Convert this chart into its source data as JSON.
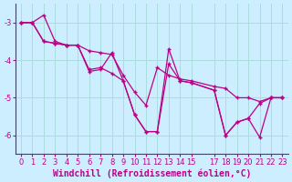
{
  "xlabel": "Windchill (Refroidissement éolien,°C)",
  "background_color": "#cceeff",
  "grid_color": "#aadddd",
  "line_color": "#bb0088",
  "marker": "+",
  "x": [
    0,
    1,
    2,
    3,
    4,
    5,
    6,
    7,
    8,
    9,
    10,
    11,
    12,
    13,
    14,
    15,
    17,
    18,
    19,
    20,
    21,
    22,
    23
  ],
  "series1": [
    -3.0,
    -3.0,
    -2.8,
    -3.5,
    -3.6,
    -3.6,
    -3.75,
    -3.8,
    -3.85,
    -4.4,
    -4.85,
    -5.2,
    -4.2,
    -4.4,
    -4.5,
    -4.55,
    -4.7,
    -4.75,
    -5.0,
    -5.0,
    -5.1,
    -5.0,
    -5.0
  ],
  "series2": [
    -3.0,
    -3.0,
    -3.5,
    -3.55,
    -3.6,
    -3.6,
    -4.25,
    -4.2,
    -4.35,
    -4.55,
    -5.45,
    -5.9,
    -5.9,
    -4.1,
    -4.55,
    -4.6,
    -4.8,
    -6.0,
    -5.65,
    -5.55,
    -5.15,
    -5.0,
    -5.0
  ],
  "series3": [
    -3.0,
    -3.0,
    -3.5,
    -3.55,
    -3.6,
    -3.6,
    -4.3,
    -4.25,
    -3.8,
    -4.55,
    -5.45,
    -5.9,
    -5.9,
    -3.7,
    -4.55,
    -4.6,
    -4.8,
    -6.0,
    -5.65,
    -5.55,
    -6.05,
    -5.0,
    -5.0
  ],
  "ylim": [
    -6.5,
    -2.5
  ],
  "xlim": [
    -0.5,
    23.5
  ],
  "yticks": [
    -6,
    -5,
    -4,
    -3
  ],
  "xticks": [
    0,
    1,
    2,
    3,
    4,
    5,
    6,
    7,
    8,
    9,
    10,
    11,
    12,
    13,
    14,
    15,
    17,
    18,
    19,
    20,
    21,
    22,
    23
  ],
  "xtick_labels": [
    "0",
    "1",
    "2",
    "3",
    "4",
    "5",
    "6",
    "7",
    "8",
    "9",
    "10",
    "11",
    "12",
    "13",
    "14",
    "15",
    "17",
    "18",
    "19",
    "20",
    "21",
    "22",
    "23"
  ],
  "fontsize_xlabel": 7,
  "fontsize_ticks": 6
}
